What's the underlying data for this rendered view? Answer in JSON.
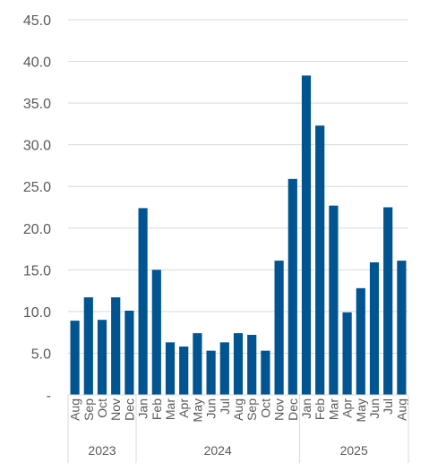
{
  "chart_data": {
    "type": "bar",
    "title": "",
    "xlabel": "",
    "ylabel": "",
    "ylim": [
      0,
      45
    ],
    "yticks": [
      "-",
      "5.0",
      "10.0",
      "15.0",
      "20.0",
      "25.0",
      "30.0",
      "35.0",
      "40.0",
      "45.0"
    ],
    "grid": true,
    "bar_color": "#00548F",
    "categories": [
      "Aug",
      "Sep",
      "Oct",
      "Nov",
      "Dec",
      "Jan",
      "Feb",
      "Mar",
      "Apr",
      "May",
      "Jun",
      "Jul",
      "Aug",
      "Sep",
      "Oct",
      "Nov",
      "Dec",
      "Jan",
      "Feb",
      "Mar",
      "Apr",
      "May",
      "Jun",
      "Jul",
      "Aug"
    ],
    "values": [
      8.9,
      11.7,
      9.0,
      11.7,
      10.1,
      22.4,
      15.0,
      6.3,
      5.8,
      7.4,
      5.3,
      6.3,
      7.4,
      7.2,
      5.3,
      16.1,
      25.9,
      38.3,
      32.3,
      22.7,
      9.9,
      12.8,
      15.9,
      22.5,
      16.1
    ],
    "groups": [
      {
        "label": "2023",
        "count": 5
      },
      {
        "label": "2024",
        "count": 12
      },
      {
        "label": "2025",
        "count": 8
      }
    ]
  }
}
